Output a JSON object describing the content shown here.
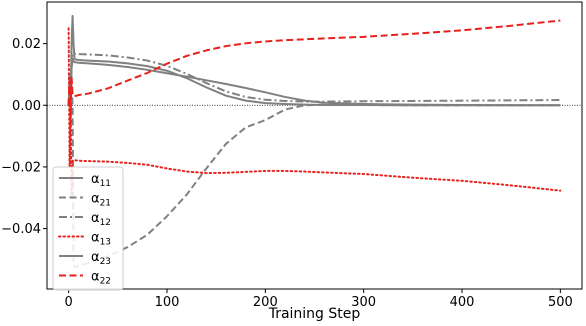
{
  "chart_data": {
    "type": "line",
    "title": "",
    "xlabel": "Training Step",
    "ylabel": "",
    "xlim": [
      -22,
      522
    ],
    "ylim": [
      -0.0596,
      0.0335
    ],
    "xticks": [
      0,
      100,
      200,
      300,
      400,
      500
    ],
    "xtick_labels": [
      "0",
      "100",
      "200",
      "300",
      "400",
      "500"
    ],
    "yticks": [
      -0.04,
      -0.02,
      0.0,
      0.02
    ],
    "ytick_labels": [
      "−0.04",
      "−0.02",
      "0.00",
      "0.02"
    ],
    "grid": false,
    "legend_position": "lower-left",
    "reference_line": {
      "y": 0,
      "color": "#000000",
      "style": "dotted"
    },
    "series": [
      {
        "name": "α",
        "subscript": "11",
        "color": "#808080",
        "style": "solid",
        "x": [
          0,
          1,
          2,
          3,
          4,
          5,
          6,
          8,
          10,
          20,
          40,
          60,
          80,
          100,
          120,
          140,
          160,
          180,
          200,
          220,
          240,
          260,
          300,
          350,
          400,
          450,
          500
        ],
        "y": [
          0.0,
          0.008,
          0.0,
          0.02,
          0.029,
          0.02,
          0.015,
          0.0148,
          0.0147,
          0.0145,
          0.0142,
          0.0136,
          0.0127,
          0.0112,
          0.0088,
          0.0058,
          0.0031,
          0.0015,
          0.0007,
          0.0004,
          0.0002,
          0.0001,
          0.0001,
          0.0,
          0.0,
          0.0,
          0.0
        ]
      },
      {
        "name": "α",
        "subscript": "21",
        "color": "#808080",
        "style": "dashed",
        "x": [
          0,
          1,
          2,
          3,
          4,
          5,
          6,
          8,
          10,
          20,
          40,
          60,
          80,
          100,
          120,
          140,
          160,
          180,
          200,
          220,
          240,
          260,
          300,
          350,
          400,
          450,
          500
        ],
        "y": [
          0.0,
          0.006,
          -0.006,
          0.008,
          0.0,
          -0.052,
          -0.0525,
          -0.0525,
          -0.052,
          -0.0512,
          -0.049,
          -0.046,
          -0.042,
          -0.036,
          -0.029,
          -0.0205,
          -0.0125,
          -0.0072,
          -0.0048,
          -0.0014,
          0.0,
          0.0002,
          0.0001,
          0.0,
          0.0,
          0.0,
          0.0
        ]
      },
      {
        "name": "α",
        "subscript": "12",
        "color": "#808080",
        "style": "dashdot",
        "x": [
          0,
          1,
          2,
          3,
          4,
          5,
          6,
          8,
          10,
          20,
          40,
          60,
          80,
          100,
          120,
          140,
          160,
          180,
          200,
          220,
          240,
          260,
          300,
          350,
          400,
          450,
          500
        ],
        "y": [
          0.0,
          0.01,
          0.004,
          0.015,
          0.017,
          0.0168,
          0.0167,
          0.0166,
          0.0166,
          0.0165,
          0.0162,
          0.0155,
          0.0145,
          0.0128,
          0.0102,
          0.0072,
          0.0045,
          0.0027,
          0.0018,
          0.0014,
          0.0012,
          0.0012,
          0.0013,
          0.0014,
          0.0015,
          0.0016,
          0.0017
        ]
      },
      {
        "name": "α",
        "subscript": "13",
        "color": "#e8211d",
        "style": "dotted",
        "x": [
          0,
          1,
          2,
          3,
          4,
          5,
          6,
          8,
          10,
          20,
          40,
          60,
          80,
          100,
          120,
          140,
          160,
          180,
          200,
          220,
          240,
          260,
          300,
          350,
          400,
          450,
          500
        ],
        "y": [
          0.025,
          -0.02,
          0.0,
          -0.03,
          -0.018,
          -0.0178,
          -0.0178,
          -0.0179,
          -0.018,
          -0.0181,
          -0.0183,
          -0.0187,
          -0.0193,
          -0.0205,
          -0.0215,
          -0.022,
          -0.0219,
          -0.0216,
          -0.0213,
          -0.0213,
          -0.0215,
          -0.0218,
          -0.0223,
          -0.0235,
          -0.0245,
          -0.026,
          -0.0277
        ]
      },
      {
        "name": "α",
        "subscript": "23",
        "color": "#808080",
        "style": "solid",
        "x": [
          0,
          1,
          2,
          3,
          4,
          5,
          6,
          8,
          10,
          20,
          40,
          60,
          80,
          100,
          120,
          140,
          160,
          180,
          200,
          220,
          240,
          260,
          300,
          350,
          400,
          450,
          500
        ],
        "y": [
          0.0,
          0.005,
          0.0,
          0.012,
          0.015,
          0.0142,
          0.014,
          0.0139,
          0.0138,
          0.0136,
          0.0131,
          0.0124,
          0.0115,
          0.0104,
          0.0093,
          0.0081,
          0.0069,
          0.0056,
          0.0042,
          0.0027,
          0.0015,
          0.0008,
          0.0004,
          0.0002,
          0.0001,
          0.0,
          0.0
        ]
      },
      {
        "name": "α",
        "subscript": "22",
        "color": "#e8211d",
        "style": "dashed",
        "x": [
          0,
          1,
          2,
          3,
          4,
          5,
          6,
          8,
          10,
          20,
          40,
          60,
          80,
          100,
          120,
          140,
          160,
          180,
          200,
          220,
          240,
          260,
          300,
          350,
          400,
          450,
          500
        ],
        "y": [
          0.0,
          0.008,
          -0.003,
          0.009,
          0.0035,
          0.003,
          0.003,
          0.0031,
          0.0033,
          0.0038,
          0.0055,
          0.008,
          0.0105,
          0.0135,
          0.016,
          0.0178,
          0.0192,
          0.0201,
          0.0207,
          0.0211,
          0.0214,
          0.0217,
          0.0222,
          0.0232,
          0.0243,
          0.0258,
          0.0275
        ]
      }
    ]
  }
}
